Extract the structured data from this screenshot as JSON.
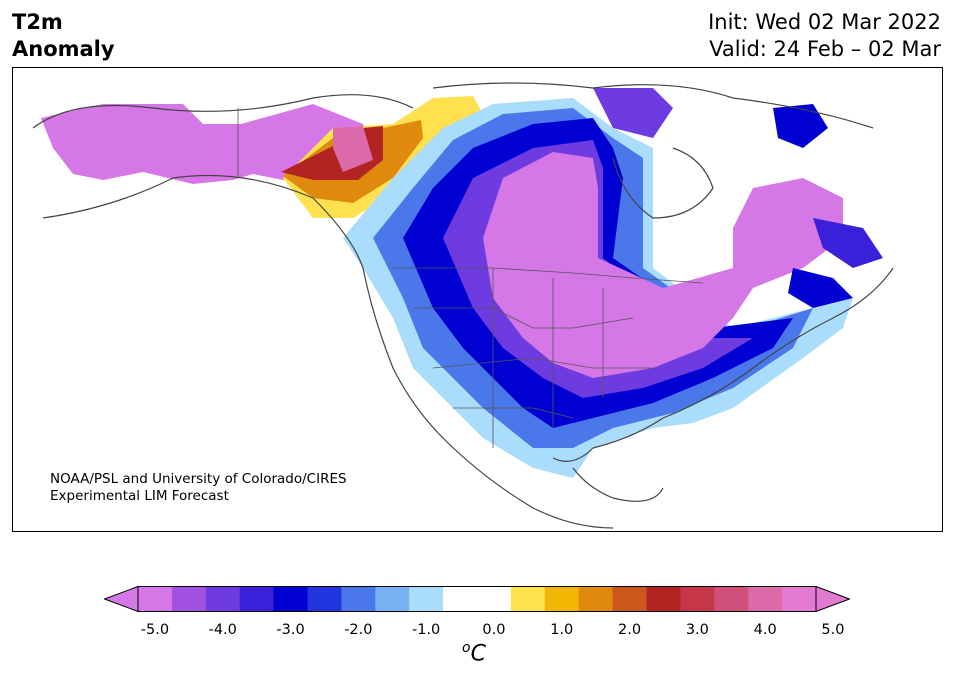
{
  "title": {
    "line1": "T2m",
    "line2": "Anomaly"
  },
  "dates": {
    "init": "Init: Wed 02 Mar 2022",
    "valid": "Valid: 24 Feb – 02 Mar"
  },
  "credit": {
    "line1": "NOAA/PSL and University of Colorado/CIRES",
    "line2": "Experimental LIM Forecast"
  },
  "colorbar": {
    "ticks": [
      "-5.0",
      "-4.0",
      "-3.0",
      "-2.0",
      "-1.0",
      "0.0",
      "1.0",
      "2.0",
      "3.0",
      "4.0",
      "5.0"
    ],
    "unit_base": "C",
    "unit_sup": "o",
    "colors": [
      "#d677e8",
      "#a352e0",
      "#6e3be0",
      "#3a20d8",
      "#0000d2",
      "#2335e0",
      "#4a78ea",
      "#77b2f4",
      "#aadcfc",
      "#ffffff",
      "#ffffff",
      "#ffe14f",
      "#f2b705",
      "#df8a0c",
      "#c9581a",
      "#b22422",
      "#c53648",
      "#d1507a",
      "#dc6aa8",
      "#e37ad2"
    ],
    "under_color": "#d677e8",
    "over_color": "#e37ad2"
  },
  "map": {
    "region": "North America",
    "features": [
      "coastlines",
      "country-borders",
      "state-borders"
    ]
  }
}
